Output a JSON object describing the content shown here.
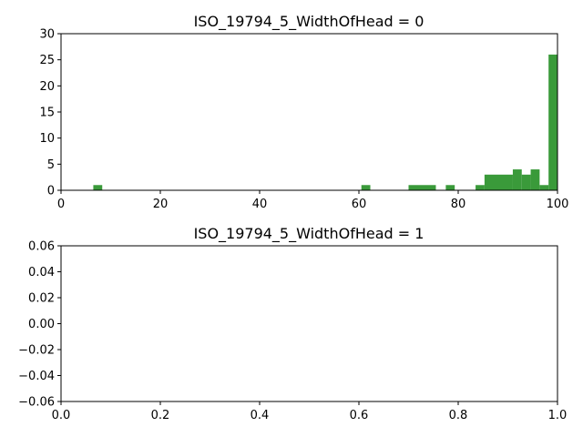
{
  "chart_data": [
    {
      "type": "bar",
      "title": "ISO_19794_5_WidthOfHead = 0",
      "xlabel": "",
      "ylabel": "",
      "xlim": [
        0,
        100
      ],
      "ylim": [
        0,
        30
      ],
      "x_ticks": [
        "0",
        "20",
        "40",
        "60",
        "80",
        "100"
      ],
      "y_ticks": [
        "0",
        "5",
        "10",
        "15",
        "20",
        "25",
        "30"
      ],
      "grid": false,
      "bar_color": "#3a9a3a",
      "bin_width": 2,
      "bins": [
        {
          "x0": 6.5,
          "x1": 8.3,
          "count": 1
        },
        {
          "x0": 60.5,
          "x1": 62.3,
          "count": 1
        },
        {
          "x0": 70.0,
          "x1": 75.5,
          "count": 1
        },
        {
          "x0": 77.5,
          "x1": 79.3,
          "count": 1
        },
        {
          "x0": 83.5,
          "x1": 85.3,
          "count": 1
        },
        {
          "x0": 85.3,
          "x1": 91.0,
          "count": 3
        },
        {
          "x0": 91.0,
          "x1": 92.8,
          "count": 4
        },
        {
          "x0": 92.8,
          "x1": 94.6,
          "count": 3
        },
        {
          "x0": 94.6,
          "x1": 96.4,
          "count": 4
        },
        {
          "x0": 96.4,
          "x1": 98.2,
          "count": 1
        },
        {
          "x0": 98.2,
          "x1": 100.0,
          "count": 26
        }
      ]
    },
    {
      "type": "bar",
      "title": "ISO_19794_5_WidthOfHead = 1",
      "xlabel": "",
      "ylabel": "",
      "xlim": [
        0,
        1
      ],
      "ylim": [
        -0.06,
        0.06
      ],
      "x_ticks": [
        "0.0",
        "0.2",
        "0.4",
        "0.6",
        "0.8",
        "1.0"
      ],
      "y_ticks": [
        "−0.06",
        "−0.04",
        "−0.02",
        "0.00",
        "0.02",
        "0.04",
        "0.06"
      ],
      "grid": false,
      "bar_color": "#3a9a3a",
      "bins": []
    }
  ]
}
